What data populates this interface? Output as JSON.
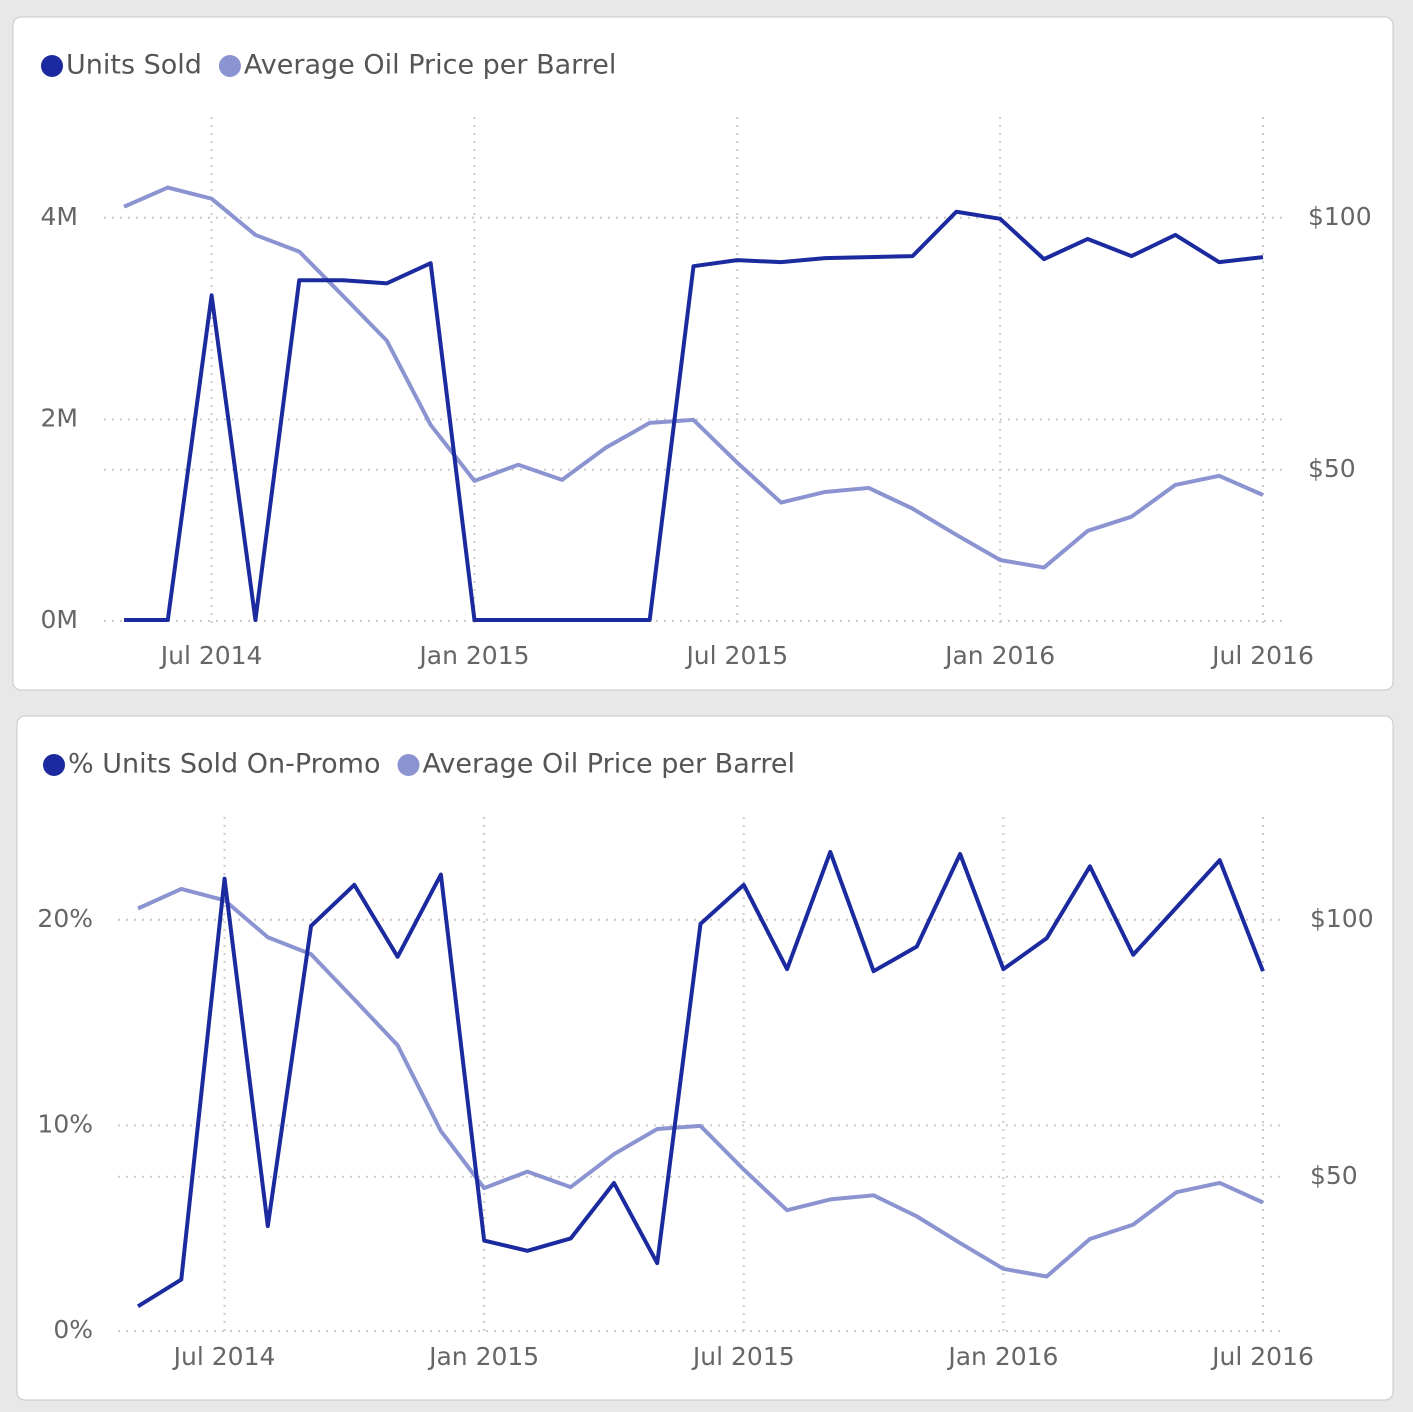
{
  "chart_data": [
    {
      "type": "line",
      "x": [
        "2014-05",
        "2014-06",
        "2014-07",
        "2014-08",
        "2014-09",
        "2014-10",
        "2014-11",
        "2014-12",
        "2015-01",
        "2015-02",
        "2015-03",
        "2015-04",
        "2015-05",
        "2015-06",
        "2015-07",
        "2015-08",
        "2015-09",
        "2015-10",
        "2015-11",
        "2015-12",
        "2016-01",
        "2016-02",
        "2016-03",
        "2016-04",
        "2016-05",
        "2016-06",
        "2016-07"
      ],
      "xticks": [
        {
          "value": "2014-07",
          "label": "Jul 2014"
        },
        {
          "value": "2015-01",
          "label": "Jan 2015"
        },
        {
          "value": "2015-07",
          "label": "Jul 2015"
        },
        {
          "value": "2016-01",
          "label": "Jan 2016"
        },
        {
          "value": "2016-07",
          "label": "Jul 2016"
        }
      ],
      "ylim": [
        0,
        5000000
      ],
      "yticks": [
        {
          "value": 0,
          "label": "0M"
        },
        {
          "value": 2000000,
          "label": "2M"
        },
        {
          "value": 4000000,
          "label": "4M"
        }
      ],
      "y2lim": [
        20,
        120
      ],
      "y2ticks": [
        {
          "value": 50,
          "label": "$50"
        },
        {
          "value": 100,
          "label": "$100"
        }
      ],
      "grid": true,
      "legend": "top-left",
      "series": [
        {
          "name": "Units Sold",
          "color": "#1b2a9e",
          "values": [
            10000,
            10000,
            3230000,
            10000,
            3380000,
            3380000,
            3350000,
            3550000,
            10000,
            10000,
            10000,
            10000,
            10000,
            3520000,
            3580000,
            3560000,
            3600000,
            3610000,
            3620000,
            4060000,
            3990000,
            3590000,
            3790000,
            3620000,
            3830000,
            3560000,
            3610000
          ]
        },
        {
          "name": "Average Oil Price per Barrel",
          "color": "#8b93d1",
          "axis": "y2",
          "values": [
            102.2,
            106,
            103.8,
            96.6,
            93.3,
            84.5,
            75.6,
            58.9,
            47.8,
            51,
            48,
            54.4,
            59.3,
            59.9,
            51.4,
            43.5,
            45.6,
            46.4,
            42.3,
            37.1,
            32.1,
            30.6,
            37.9,
            40.7,
            47,
            48.8,
            45
          ]
        }
      ]
    },
    {
      "type": "line",
      "x": [
        "2014-05",
        "2014-06",
        "2014-07",
        "2014-08",
        "2014-09",
        "2014-10",
        "2014-11",
        "2014-12",
        "2015-01",
        "2015-02",
        "2015-03",
        "2015-04",
        "2015-05",
        "2015-06",
        "2015-07",
        "2015-08",
        "2015-09",
        "2015-10",
        "2015-11",
        "2015-12",
        "2016-01",
        "2016-02",
        "2016-03",
        "2016-04",
        "2016-05",
        "2016-06",
        "2016-07"
      ],
      "xticks": [
        {
          "value": "2014-07",
          "label": "Jul 2014"
        },
        {
          "value": "2015-01",
          "label": "Jan 2015"
        },
        {
          "value": "2015-07",
          "label": "Jul 2015"
        },
        {
          "value": "2016-01",
          "label": "Jan 2016"
        },
        {
          "value": "2016-07",
          "label": "Jul 2016"
        }
      ],
      "ylim": [
        0,
        25
      ],
      "yticks": [
        {
          "value": 0,
          "label": "0%"
        },
        {
          "value": 10,
          "label": "10%"
        },
        {
          "value": 20,
          "label": "20%"
        }
      ],
      "y2lim": [
        20,
        120
      ],
      "y2ticks": [
        {
          "value": 50,
          "label": "$50"
        },
        {
          "value": 100,
          "label": "$100"
        }
      ],
      "grid": true,
      "legend": "top-left",
      "series": [
        {
          "name": "% Units Sold On-Promo",
          "color": "#1b2a9e",
          "values": [
            1.2,
            2.5,
            22,
            5.1,
            19.7,
            21.7,
            18.2,
            22.2,
            4.4,
            3.9,
            4.5,
            7.2,
            3.3,
            19.8,
            21.7,
            17.6,
            23.3,
            17.5,
            18.7,
            23.2,
            17.6,
            19.1,
            22.6,
            18.3,
            20.6,
            22.9,
            17.5
          ]
        },
        {
          "name": "Average Oil Price per Barrel",
          "color": "#8b93d1",
          "axis": "y2",
          "values": [
            102.2,
            106,
            103.8,
            96.6,
            93.3,
            84.5,
            75.6,
            58.9,
            47.8,
            51,
            48,
            54.4,
            59.3,
            59.9,
            51.4,
            43.5,
            45.6,
            46.4,
            42.3,
            37.1,
            32.1,
            30.6,
            37.9,
            40.7,
            47,
            48.8,
            45
          ]
        }
      ]
    }
  ]
}
